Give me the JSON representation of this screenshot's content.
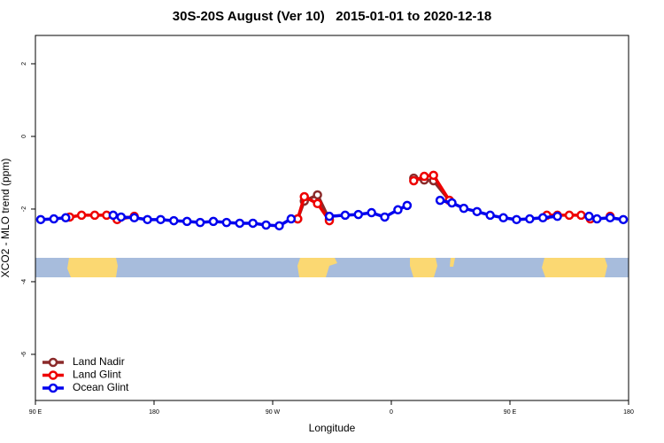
{
  "chart_data": {
    "type": "line",
    "title": "30S-20S August (Ver 10)   2015-01-01 to 2020-12-18",
    "xlabel": "Longitude",
    "ylabel": "XCO2 - MLO trend (ppm)",
    "xlim": [
      90,
      540
    ],
    "ylim": [
      -7.27,
      2.78
    ],
    "xticks": [
      {
        "value": 90,
        "label": "90 E"
      },
      {
        "value": 180,
        "label": "180"
      },
      {
        "value": 270,
        "label": "90 W"
      },
      {
        "value": 360,
        "label": "0"
      },
      {
        "value": 450,
        "label": "90 E"
      },
      {
        "value": 540,
        "label": "180"
      }
    ],
    "yticks": [
      -6,
      -4,
      -2,
      0,
      2
    ],
    "legend": "bottomleft",
    "series": [
      {
        "name": "Land Nadir",
        "color": "#8b2a2a",
        "x": [
          289,
          294,
          304,
          313,
          null,
          377,
          385,
          392,
          404
        ],
        "values": [
          -2.27,
          -1.78,
          -1.61,
          -2.29,
          null,
          -1.15,
          -1.2,
          -1.22,
          -1.76
        ]
      },
      {
        "name": "Land Glint",
        "color": "#ee0000",
        "x": [
          116,
          125,
          135,
          144,
          null,
          152,
          165,
          null,
          289,
          294,
          304,
          313,
          null,
          377,
          385,
          392,
          404,
          null,
          478,
          486,
          495,
          504,
          511,
          null,
          526
        ],
        "values": [
          -2.22,
          -2.17,
          -2.17,
          -2.17,
          null,
          -2.29,
          -2.2,
          null,
          -2.27,
          -1.66,
          -1.85,
          -2.32,
          null,
          -1.22,
          -1.1,
          -1.07,
          -1.76,
          null,
          -2.17,
          -2.17,
          -2.17,
          -2.17,
          -2.27,
          null,
          -2.2
        ]
      },
      {
        "name": "Ocean Glint",
        "color": "#0000ee",
        "x": [
          94,
          104,
          113,
          null,
          149,
          155,
          165,
          175,
          185,
          195,
          205,
          215,
          225,
          235,
          245,
          255,
          265,
          275,
          284,
          null,
          313,
          325,
          335,
          345,
          355,
          365,
          372,
          null,
          397,
          406,
          415,
          425,
          435,
          445,
          455,
          465,
          475,
          486,
          null,
          510,
          516,
          526,
          536
        ],
        "values": [
          -2.29,
          -2.27,
          -2.24,
          null,
          -2.17,
          -2.22,
          -2.24,
          -2.29,
          -2.29,
          -2.32,
          -2.34,
          -2.37,
          -2.34,
          -2.37,
          -2.39,
          -2.39,
          -2.44,
          -2.46,
          -2.27,
          null,
          -2.2,
          -2.17,
          -2.15,
          -2.1,
          -2.22,
          -2.02,
          -1.9,
          null,
          -1.76,
          -1.83,
          -1.98,
          -2.07,
          -2.17,
          -2.24,
          -2.29,
          -2.27,
          -2.24,
          -2.2,
          null,
          -2.2,
          -2.27,
          -2.24,
          -2.29
        ]
      }
    ]
  }
}
